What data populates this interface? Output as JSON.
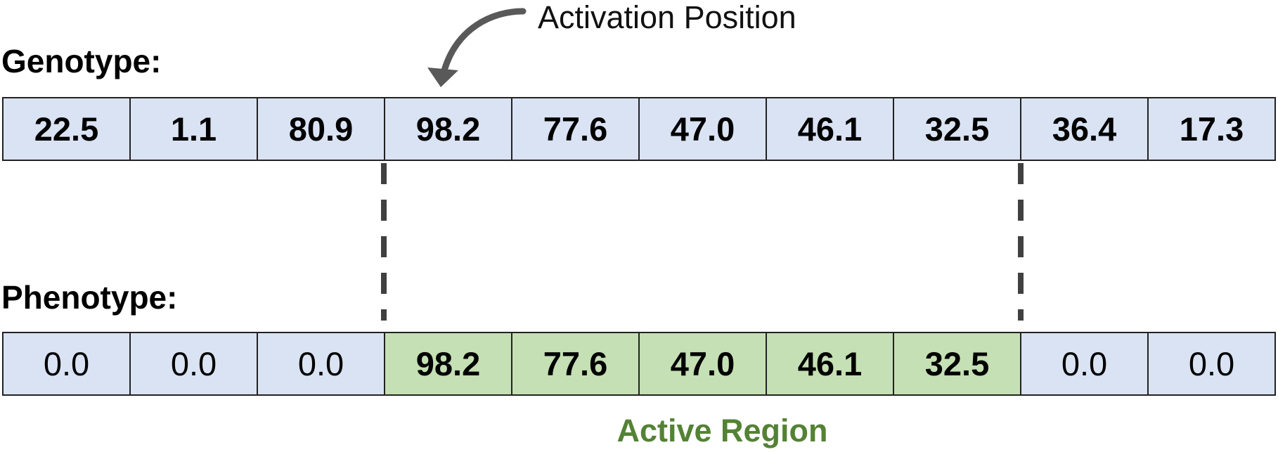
{
  "labels": {
    "genotype": "Genotype:",
    "phenotype": "Phenotype:",
    "activation_position": "Activation Position",
    "active_region": "Active Region"
  },
  "genotype": [
    "22.5",
    "1.1",
    "80.9",
    "98.2",
    "77.6",
    "47.0",
    "46.1",
    "32.5",
    "36.4",
    "17.3"
  ],
  "phenotype": [
    "0.0",
    "0.0",
    "0.0",
    "98.2",
    "77.6",
    "47.0",
    "46.1",
    "32.5",
    "0.0",
    "0.0"
  ],
  "active_region_indices": [
    3,
    4,
    5,
    6,
    7
  ],
  "activation_index": 3,
  "colors": {
    "inactive_cell": "#dae3f3",
    "active_cell": "#c5e0b4",
    "active_region_text": "#548235",
    "arrow": "#595959",
    "dashed_line": "#404040"
  }
}
